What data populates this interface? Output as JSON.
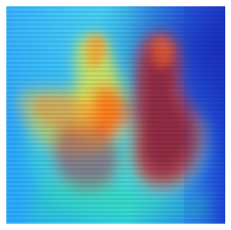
{
  "image": {
    "kind": "heatmap",
    "colormap": "jet",
    "colors": {
      "background_low": "#1f78ff",
      "mid": "#35d3f0",
      "high": "#f1ee3a",
      "peak": "#9c2f3d"
    }
  }
}
